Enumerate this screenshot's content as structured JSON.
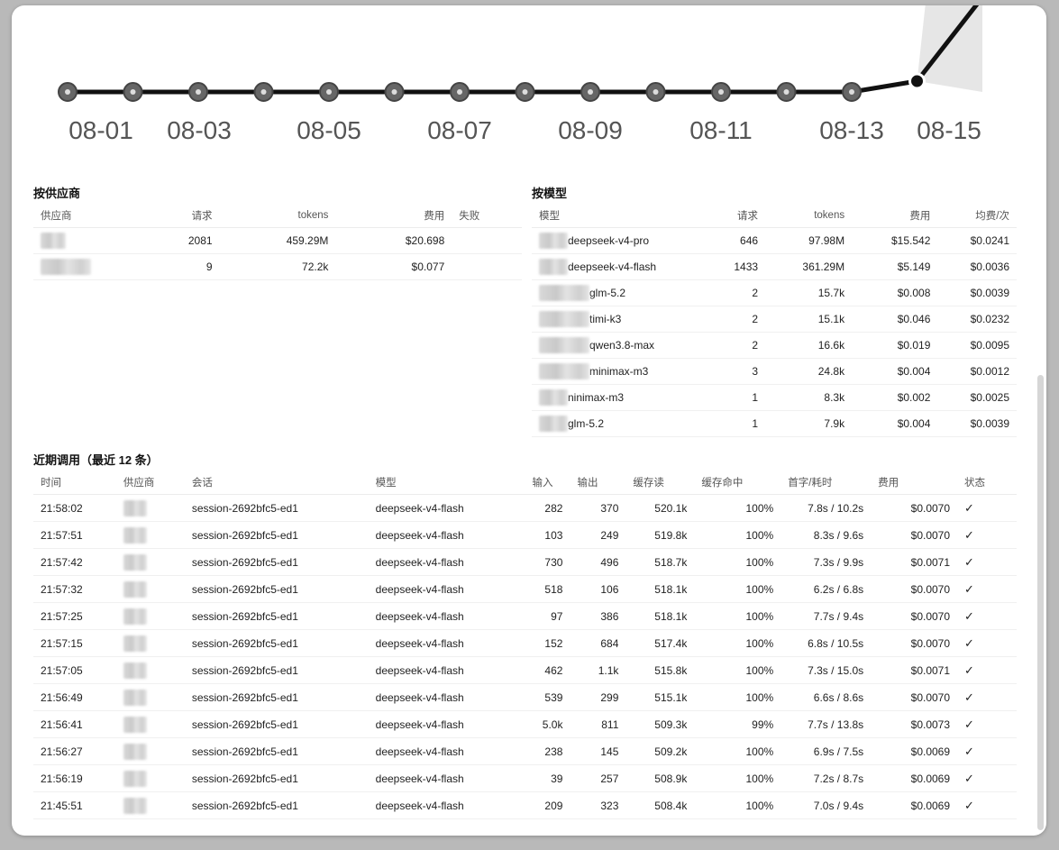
{
  "chart_data": {
    "type": "line",
    "x": [
      "08-01",
      "08-02",
      "08-03",
      "08-04",
      "08-05",
      "08-06",
      "08-07",
      "08-08",
      "08-09",
      "08-10",
      "08-11",
      "08-12",
      "08-13",
      "08-14",
      "08-15"
    ],
    "tick_labels": [
      "08-01",
      "08-03",
      "08-05",
      "08-07",
      "08-09",
      "08-11",
      "08-13",
      "08-15"
    ],
    "values": [
      0,
      0,
      0,
      0,
      0,
      0,
      0,
      0,
      0,
      0,
      0,
      0,
      0,
      0.4,
      3.5
    ],
    "ylim": [
      0,
      3.2
    ],
    "colors": {
      "line": "#111111",
      "marker": "#666666",
      "area": "#e6e6e6"
    }
  },
  "by_provider": {
    "title": "按供应商",
    "columns": [
      "供应商",
      "请求",
      "tokens",
      "费用",
      "失败"
    ],
    "rows": [
      {
        "provider": "",
        "requests": "2081",
        "tokens": "459.29M",
        "cost": "$20.698",
        "failed": ""
      },
      {
        "provider": "",
        "requests": "9",
        "tokens": "72.2k",
        "cost": "$0.077",
        "failed": ""
      }
    ]
  },
  "by_model": {
    "title": "按模型",
    "columns": [
      "模型",
      "请求",
      "tokens",
      "费用",
      "均费/次"
    ],
    "rows": [
      {
        "model": "deepseek-v4-pro",
        "requests": "646",
        "tokens": "97.98M",
        "cost": "$15.542",
        "avg": "$0.0241"
      },
      {
        "model": "deepseek-v4-flash",
        "requests": "1433",
        "tokens": "361.29M",
        "cost": "$5.149",
        "avg": "$0.0036"
      },
      {
        "model": "glm-5.2",
        "requests": "2",
        "tokens": "15.7k",
        "cost": "$0.008",
        "avg": "$0.0039"
      },
      {
        "model": "timi-k3",
        "requests": "2",
        "tokens": "15.1k",
        "cost": "$0.046",
        "avg": "$0.0232"
      },
      {
        "model": "qwen3.8-max",
        "requests": "2",
        "tokens": "16.6k",
        "cost": "$0.019",
        "avg": "$0.0095"
      },
      {
        "model": "minimax-m3",
        "requests": "3",
        "tokens": "24.8k",
        "cost": "$0.004",
        "avg": "$0.0012"
      },
      {
        "model": "ninimax-m3",
        "requests": "1",
        "tokens": "8.3k",
        "cost": "$0.002",
        "avg": "$0.0025"
      },
      {
        "model": "glm-5.2",
        "requests": "1",
        "tokens": "7.9k",
        "cost": "$0.004",
        "avg": "$0.0039"
      }
    ]
  },
  "recent": {
    "title": "近期调用（最近 12 条）",
    "columns": [
      "时间",
      "供应商",
      "会话",
      "模型",
      "输入",
      "输出",
      "缓存读",
      "缓存命中",
      "首字/耗时",
      "费用",
      "状态"
    ],
    "rows": [
      {
        "time": "21:58:02",
        "session": "session-2692bfc5-ed1",
        "model": "deepseek-v4-flash",
        "input": "282",
        "output": "370",
        "cache": "520.1k",
        "hit": "100%",
        "latency": "7.8s / 10.2s",
        "cost": "$0.0070",
        "status": "✓"
      },
      {
        "time": "21:57:51",
        "session": "session-2692bfc5-ed1",
        "model": "deepseek-v4-flash",
        "input": "103",
        "output": "249",
        "cache": "519.8k",
        "hit": "100%",
        "latency": "8.3s / 9.6s",
        "cost": "$0.0070",
        "status": "✓"
      },
      {
        "time": "21:57:42",
        "session": "session-2692bfc5-ed1",
        "model": "deepseek-v4-flash",
        "input": "730",
        "output": "496",
        "cache": "518.7k",
        "hit": "100%",
        "latency": "7.3s / 9.9s",
        "cost": "$0.0071",
        "status": "✓"
      },
      {
        "time": "21:57:32",
        "session": "session-2692bfc5-ed1",
        "model": "deepseek-v4-flash",
        "input": "518",
        "output": "106",
        "cache": "518.1k",
        "hit": "100%",
        "latency": "6.2s / 6.8s",
        "cost": "$0.0070",
        "status": "✓"
      },
      {
        "time": "21:57:25",
        "session": "session-2692bfc5-ed1",
        "model": "deepseek-v4-flash",
        "input": "97",
        "output": "386",
        "cache": "518.1k",
        "hit": "100%",
        "latency": "7.7s / 9.4s",
        "cost": "$0.0070",
        "status": "✓"
      },
      {
        "time": "21:57:15",
        "session": "session-2692bfc5-ed1",
        "model": "deepseek-v4-flash",
        "input": "152",
        "output": "684",
        "cache": "517.4k",
        "hit": "100%",
        "latency": "6.8s / 10.5s",
        "cost": "$0.0070",
        "status": "✓"
      },
      {
        "time": "21:57:05",
        "session": "session-2692bfc5-ed1",
        "model": "deepseek-v4-flash",
        "input": "462",
        "output": "1.1k",
        "cache": "515.8k",
        "hit": "100%",
        "latency": "7.3s / 15.0s",
        "cost": "$0.0071",
        "status": "✓"
      },
      {
        "time": "21:56:49",
        "session": "session-2692bfc5-ed1",
        "model": "deepseek-v4-flash",
        "input": "539",
        "output": "299",
        "cache": "515.1k",
        "hit": "100%",
        "latency": "6.6s / 8.6s",
        "cost": "$0.0070",
        "status": "✓"
      },
      {
        "time": "21:56:41",
        "session": "session-2692bfc5-ed1",
        "model": "deepseek-v4-flash",
        "input": "5.0k",
        "output": "811",
        "cache": "509.3k",
        "hit": "99%",
        "latency": "7.7s / 13.8s",
        "cost": "$0.0073",
        "status": "✓"
      },
      {
        "time": "21:56:27",
        "session": "session-2692bfc5-ed1",
        "model": "deepseek-v4-flash",
        "input": "238",
        "output": "145",
        "cache": "509.2k",
        "hit": "100%",
        "latency": "6.9s / 7.5s",
        "cost": "$0.0069",
        "status": "✓"
      },
      {
        "time": "21:56:19",
        "session": "session-2692bfc5-ed1",
        "model": "deepseek-v4-flash",
        "input": "39",
        "output": "257",
        "cache": "508.9k",
        "hit": "100%",
        "latency": "7.2s / 8.7s",
        "cost": "$0.0069",
        "status": "✓"
      },
      {
        "time": "21:45:51",
        "session": "session-2692bfc5-ed1",
        "model": "deepseek-v4-flash",
        "input": "209",
        "output": "323",
        "cache": "508.4k",
        "hit": "100%",
        "latency": "7.0s / 9.4s",
        "cost": "$0.0069",
        "status": "✓"
      }
    ]
  }
}
